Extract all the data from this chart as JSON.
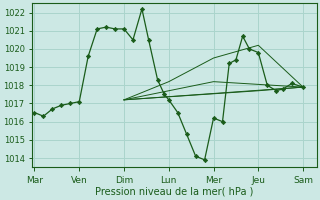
{
  "xlabel": "Pression niveau de la mer( hPa )",
  "bg_color": "#cce8e4",
  "grid_color": "#aad4cc",
  "line_color": "#1a5c1a",
  "ylim": [
    1013.5,
    1022.5
  ],
  "yticks": [
    1014,
    1015,
    1016,
    1017,
    1018,
    1019,
    1020,
    1021,
    1022
  ],
  "day_labels": [
    "Mar",
    "Ven",
    "Dim",
    "Lun",
    "Mer",
    "Jeu",
    "Sam"
  ],
  "day_positions": [
    0,
    1,
    2,
    3,
    4,
    5,
    6
  ],
  "xlim": [
    -0.05,
    6.3
  ],
  "main_x": [
    0.0,
    0.2,
    0.4,
    0.6,
    0.8,
    1.0,
    1.2,
    1.4,
    1.6,
    1.8,
    2.0,
    2.2,
    2.4,
    2.55,
    2.75,
    2.9,
    3.0,
    3.2,
    3.4,
    3.6,
    3.8,
    4.0,
    4.2,
    4.35,
    4.5,
    4.65,
    4.8,
    5.0,
    5.2,
    5.4,
    5.55,
    5.75,
    6.0
  ],
  "main_y": [
    1016.5,
    1016.3,
    1016.7,
    1016.9,
    1017.0,
    1017.1,
    1019.6,
    1021.1,
    1021.2,
    1021.1,
    1021.1,
    1020.5,
    1022.2,
    1020.5,
    1018.3,
    1017.5,
    1017.2,
    1016.5,
    1015.3,
    1014.1,
    1013.9,
    1016.2,
    1016.0,
    1019.2,
    1019.4,
    1020.7,
    1020.0,
    1019.8,
    1018.0,
    1017.7,
    1017.8,
    1018.1,
    1017.9
  ],
  "fan_origin_x": 2.0,
  "fan_origin_y": 1017.2,
  "fan_lines": [
    {
      "x": [
        2.0,
        6.0
      ],
      "y": [
        1017.2,
        1017.9
      ]
    },
    {
      "x": [
        2.0,
        5.0,
        6.0
      ],
      "y": [
        1017.2,
        1017.7,
        1017.9
      ]
    },
    {
      "x": [
        2.0,
        4.0,
        6.0
      ],
      "y": [
        1017.2,
        1018.2,
        1017.9
      ]
    },
    {
      "x": [
        2.0,
        3.0,
        4.0,
        5.0,
        6.0
      ],
      "y": [
        1017.2,
        1018.2,
        1019.5,
        1020.2,
        1017.9
      ]
    }
  ]
}
